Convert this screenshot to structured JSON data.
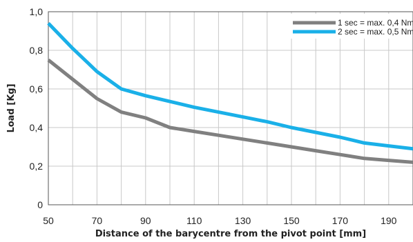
{
  "chart_data": {
    "type": "line",
    "xlabel": "Distance of the barycentre from the pivot point [mm]",
    "ylabel": "Load [Kg]",
    "xlim": [
      50,
      200
    ],
    "ylim": [
      0,
      1.0
    ],
    "x_ticks": [
      50,
      70,
      90,
      110,
      130,
      150,
      170,
      190
    ],
    "x_grid_step": 10,
    "y_ticks": [
      0,
      0.2,
      0.4,
      0.6,
      0.8,
      1.0
    ],
    "y_tick_labels": [
      "0",
      "0,2",
      "0,4",
      "0,6",
      "0,8",
      "1,0"
    ],
    "grid": true,
    "legend_position": "top-right",
    "series": [
      {
        "name": "1 sec = max. 0,4 Nm",
        "color": "#808080",
        "x": [
          50,
          60,
          70,
          80,
          90,
          100,
          110,
          120,
          130,
          140,
          150,
          160,
          170,
          180,
          190,
          200
        ],
        "y": [
          0.75,
          0.65,
          0.55,
          0.48,
          0.45,
          0.4,
          0.38,
          0.36,
          0.34,
          0.32,
          0.3,
          0.28,
          0.26,
          0.24,
          0.23,
          0.22
        ]
      },
      {
        "name": "2 sec = max. 0,5 Nm",
        "color": "#1ab0e8",
        "x": [
          50,
          60,
          70,
          80,
          90,
          100,
          110,
          120,
          130,
          140,
          150,
          160,
          170,
          180,
          190,
          200
        ],
        "y": [
          0.94,
          0.81,
          0.69,
          0.6,
          0.565,
          0.535,
          0.505,
          0.48,
          0.455,
          0.43,
          0.4,
          0.375,
          0.35,
          0.32,
          0.305,
          0.29
        ]
      }
    ]
  }
}
